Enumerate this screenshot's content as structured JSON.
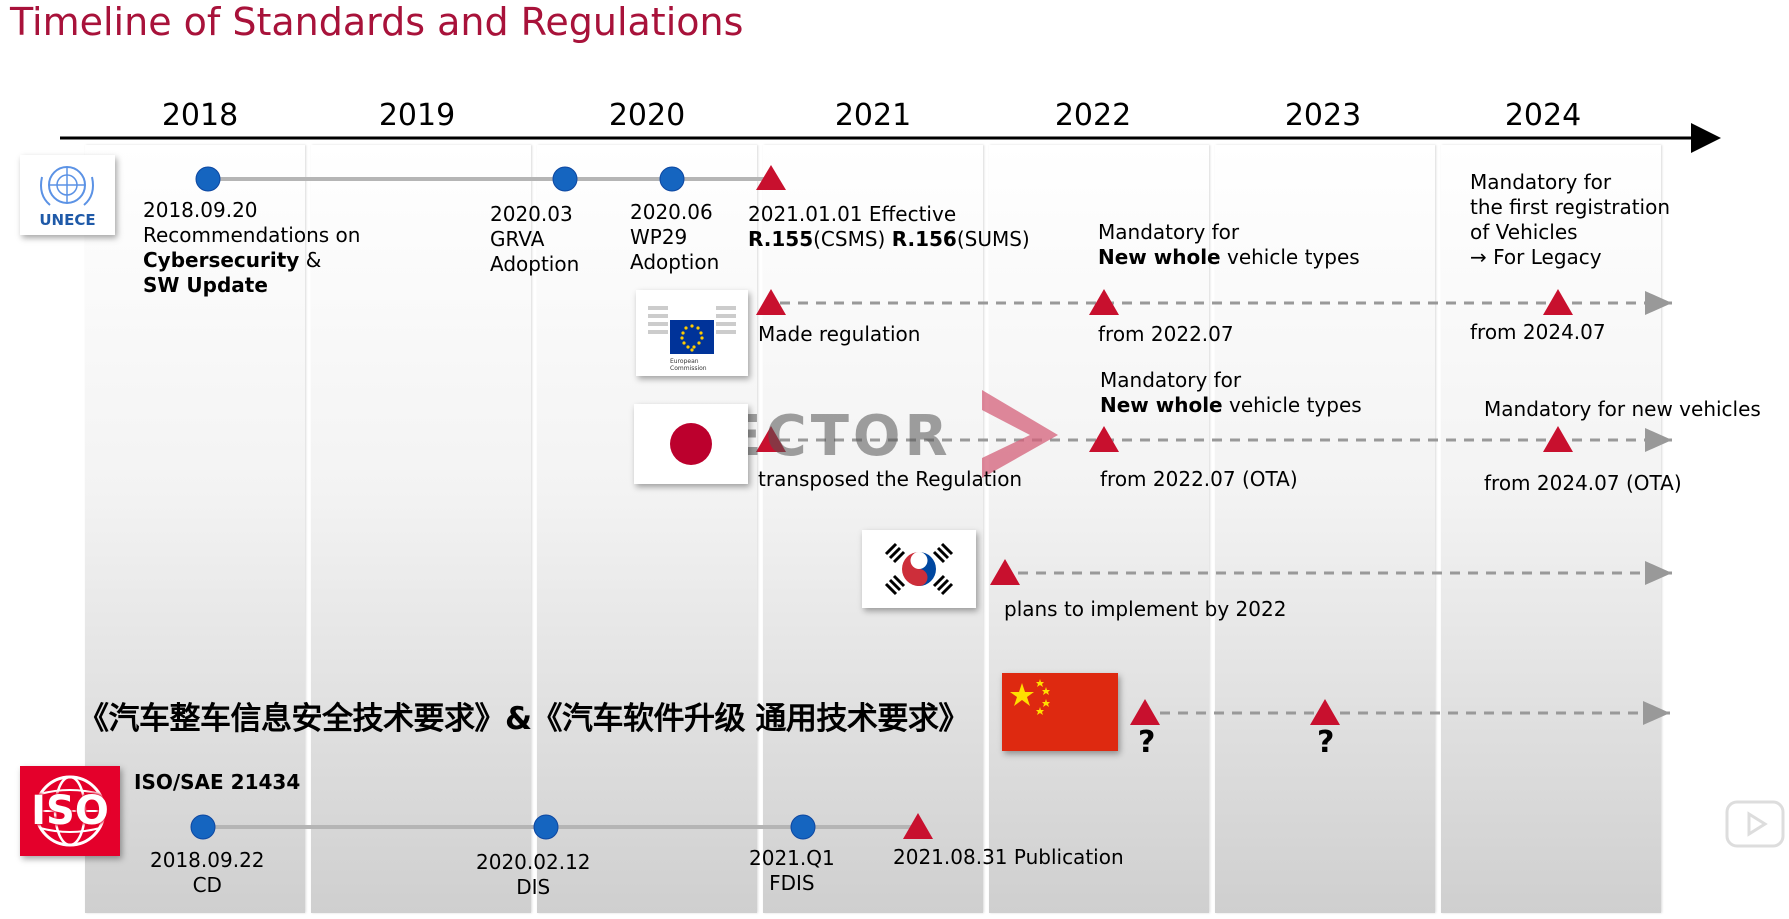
{
  "title": "Timeline of Standards and Regulations",
  "years": [
    "2018",
    "2019",
    "2020",
    "2021",
    "2022",
    "2023",
    "2024"
  ],
  "unece": {
    "logo_text": "UNECE",
    "m1": {
      "date": "2018.09.20",
      "line1": "Recommendations on",
      "bold1": "Cybersecurity",
      "amp": " &",
      "bold2": "SW Update"
    },
    "m2": {
      "date": "2020.03",
      "line1": "GRVA",
      "line2": "Adoption"
    },
    "m3": {
      "date": "2020.06",
      "line1": "WP29",
      "line2": "Adoption"
    },
    "m4": {
      "line1": "2021.01.01 Effective",
      "r155": "R.155",
      "csms": "(CSMS) ",
      "r156": "R.156",
      "sums": "(SUMS)"
    },
    "m5": {
      "line1": "Mandatory for",
      "bold": "New whole",
      "rest": " vehicle types"
    },
    "m6": {
      "line1": "Mandatory for",
      "line2": "the first registration",
      "line3": "of Vehicles",
      "line4": "→ For Legacy"
    }
  },
  "eu": {
    "logo_text": "European Commission",
    "made": "Made regulation",
    "from1": "from 2022.07",
    "from2": "from 2024.07"
  },
  "japan": {
    "m1": {
      "line1": "Mandatory for",
      "bold": "New whole",
      "rest": " vehicle types"
    },
    "mandatory_new": "Mandatory  for new vehicles",
    "transposed": "transposed the Regulation",
    "from1": "from 2022.07  (OTA)",
    "from2": "from 2024.07 (OTA)"
  },
  "watermark": "VECTOR",
  "korea": {
    "plans": "plans to implement by 2022"
  },
  "china": {
    "title": "《汽车整车信息安全技术要求》&《汽车软件升级 通用技术要求》",
    "q1": "?",
    "q2": "?"
  },
  "iso": {
    "logo_text": "ISO",
    "name": "ISO/SAE 21434",
    "m1": {
      "line1": "2018.09.22",
      "line2": "CD"
    },
    "m2": {
      "line1": "2020.02.12",
      "line2": "DIS"
    },
    "m3": {
      "line1": "2021.Q1",
      "line2": "FDIS"
    },
    "m4": "2021.08.31 Publication"
  },
  "colors": {
    "title": "#a8123a",
    "milestone": "#1565c0",
    "triangle": "#c8102e",
    "dash": "#999999"
  }
}
